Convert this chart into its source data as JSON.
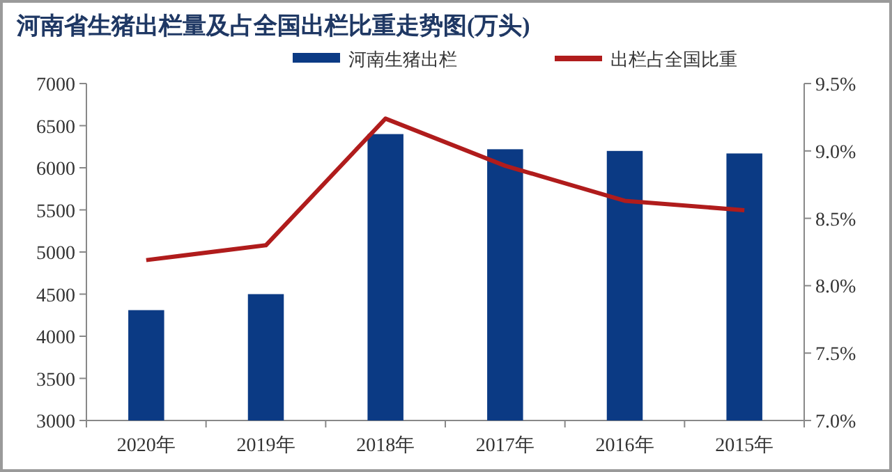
{
  "chart_data": {
    "type": "bar",
    "title": "河南省生猪出栏量及占全国出栏比重走势图(万头)",
    "categories": [
      "2020年",
      "2019年",
      "2018年",
      "2017年",
      "2016年",
      "2015年"
    ],
    "series": [
      {
        "name": "河南生猪出栏",
        "color": "#0b3a84",
        "values": [
          4310,
          4500,
          6400,
          6220,
          6200,
          6170
        ]
      },
      {
        "name": "出栏占全国比重",
        "type": "line",
        "axis": "y2",
        "color": "#b01c1c",
        "values": [
          8.19,
          8.3,
          9.24,
          8.89,
          8.63,
          8.56
        ]
      }
    ],
    "ylim": [
      3000,
      7000
    ],
    "yticks": [
      3000,
      3500,
      4000,
      4500,
      5000,
      5500,
      6000,
      6500,
      7000
    ],
    "y2lim": [
      7.0,
      9.5
    ],
    "y2ticks": [
      {
        "value": 7.0,
        "label": "7.0%"
      },
      {
        "value": 7.5,
        "label": "7.5%"
      },
      {
        "value": 8.0,
        "label": "8.0%"
      },
      {
        "value": 8.5,
        "label": "8.5%"
      },
      {
        "value": 9.0,
        "label": "9.0%"
      },
      {
        "value": 9.5,
        "label": "9.5%"
      }
    ],
    "legend": "top",
    "grid": false,
    "marker": "none"
  }
}
